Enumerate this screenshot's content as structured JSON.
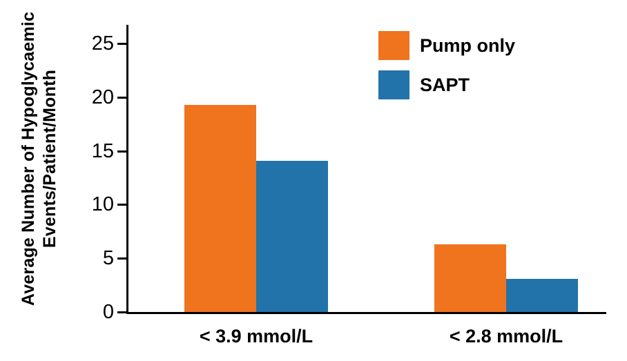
{
  "chart_data": {
    "type": "bar",
    "title": "",
    "categories": [
      "< 3.9 mmol/L",
      "< 2.8 mmol/L"
    ],
    "series": [
      {
        "name": "Pump only",
        "color": "#F0731E",
        "values": [
          19.3,
          6.3
        ]
      },
      {
        "name": "SAPT",
        "color": "#2273A9",
        "values": [
          14.1,
          3.1
        ]
      }
    ],
    "ylabel": "Average Number of Hypoglycaemic Events/Patient/Month",
    "ylabel_lines": {
      "line1": "Average Number of Hypoglycaemic",
      "line2": "Events/Patient/Month"
    },
    "xlabel": "",
    "ylim": [
      0,
      25
    ],
    "yticks": [
      "0",
      "5",
      "10",
      "15",
      "20",
      "25"
    ],
    "grid": false,
    "legend_position": "top-right"
  },
  "colors": {
    "axis": "#000000",
    "text": "#000000",
    "background": "#FFFFFF"
  }
}
